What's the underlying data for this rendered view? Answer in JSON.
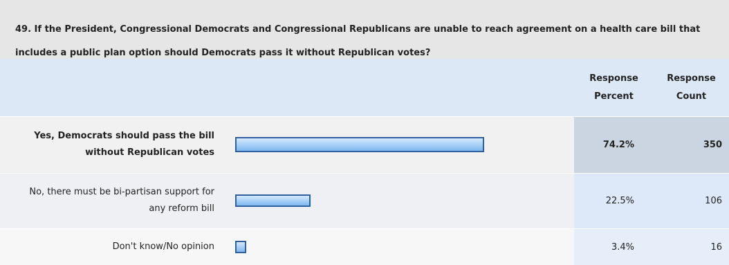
{
  "chart_data": {
    "type": "bar",
    "title": "49. If the President, Congressional Democrats and Congressional Republicans are unable to reach agreement on a health care bill that includes a public plan option should Democrats pass it without Republican votes?",
    "columns": [
      "Response Percent",
      "Response Count"
    ],
    "categories": [
      "Yes, Democrats should pass the bill without Republican votes",
      "No, there must be bi-partisan support for any reform bill",
      "Don't know/No opinion"
    ],
    "values": [
      74.2,
      22.5,
      3.4
    ],
    "value_labels": [
      "74.2%",
      "22.5%",
      "3.4%"
    ],
    "counts": [
      350,
      106,
      16
    ],
    "color": "#9ccbf5"
  }
}
